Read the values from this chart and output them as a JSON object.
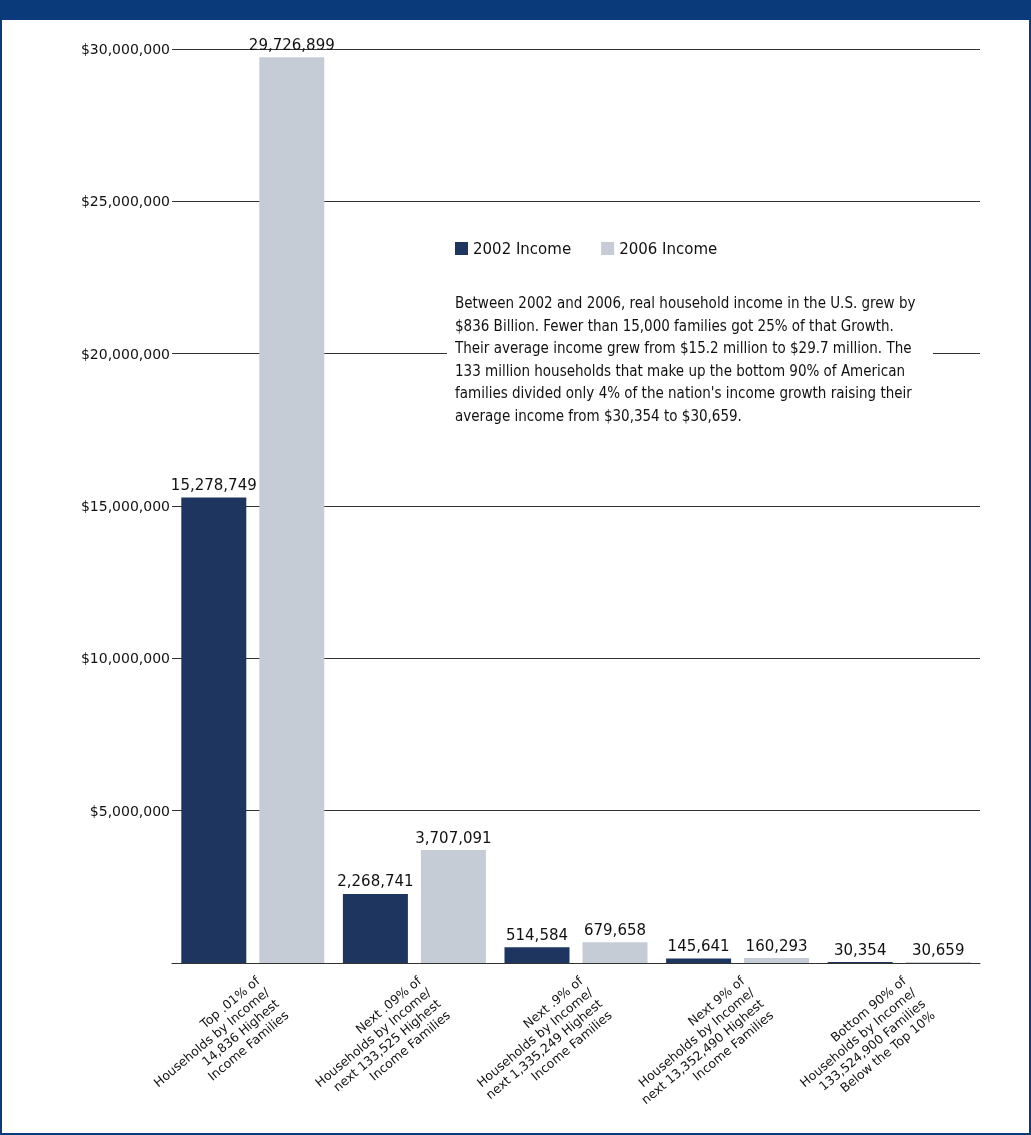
{
  "chart_data": {
    "type": "bar",
    "categories": [
      "Top .01% of\nHouseholds by Income/\n14,836 Highest\nIncome Families",
      "Next .09% of\nHouseholds by Income/\nnext 133,525 Highest\nIncome Families",
      "Next .9% of\nHouseholds by Income/\nnext 1,335,249 Highest\nIncome Families",
      "Next 9% of\nHouseholds by Income/\nnext 13,352,490 Highest\nIncome Families",
      "Bottom 90% of\nHouseholds by Income/\n133,524,900 Families\nBelow the Top 10%"
    ],
    "series": [
      {
        "name": "2002 Income",
        "color": "#1e3560",
        "values": [
          15278749,
          2268741,
          514584,
          145641,
          30354
        ],
        "value_labels": [
          "15,278,749",
          "2,268,741",
          "514,584",
          "145,641",
          "30,354"
        ]
      },
      {
        "name": "2006 Income",
        "color": "#c5ccd6",
        "values": [
          29726899,
          3707091,
          679658,
          160293,
          30659
        ],
        "value_labels": [
          "29,726,899",
          "3,707,091",
          "679,658",
          "160,293",
          "30,659"
        ]
      }
    ],
    "ylim": [
      0,
      30000000
    ],
    "yticks": [
      {
        "value": 0,
        "label": null
      },
      {
        "value": 5000000,
        "label": "$5,000,000"
      },
      {
        "value": 10000000,
        "label": "$10,000,000"
      },
      {
        "value": 15000000,
        "label": "$15,000,000"
      },
      {
        "value": 20000000,
        "label": "$20,000,000"
      },
      {
        "value": 25000000,
        "label": "$25,000,000"
      },
      {
        "value": 30000000,
        "label": "$30,000,000"
      }
    ],
    "grid": "y",
    "legend": "top right",
    "annotations": [
      "Between 2002 and 2006, real household income in the U.S. grew by $836 Billion.  Fewer than 15,000 families got 25% of that Growth.  Their average income grew from $15.2 million to $29.7 million. The 133 million households that make up the bottom 90% of American families divided only 4% of the nation's income growth raising their average  income from $30,354 to $30,659."
    ]
  }
}
